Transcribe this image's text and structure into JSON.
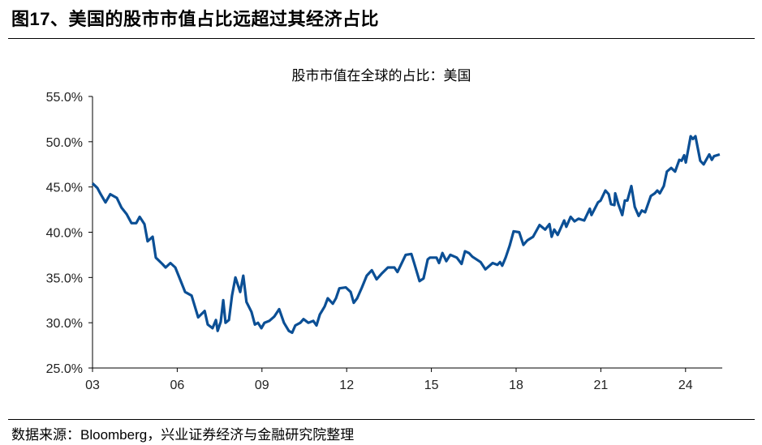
{
  "figure_title": "图17、美国的股市市值占比远超过其经济占比",
  "source": "数据来源：Bloomberg，兴业证券经济与金融研究院整理",
  "colors": {
    "line": "#0b4f95",
    "axis": "#000000"
  },
  "chart_data": {
    "type": "line",
    "title": "股市市值在全球的占比：美国",
    "xlabel": "",
    "ylabel": "",
    "xlim": [
      2003,
      2025.3
    ],
    "ylim": [
      25,
      55
    ],
    "grid": false,
    "legend": "none",
    "x_ticks": [
      2003,
      2006,
      2009,
      2012,
      2015,
      2018,
      2021,
      2024
    ],
    "x_tick_labels": [
      "03",
      "06",
      "09",
      "12",
      "15",
      "18",
      "21",
      "24"
    ],
    "y_ticks": [
      25,
      30,
      35,
      40,
      45,
      50,
      55
    ],
    "y_tick_labels": [
      "25.0%",
      "30.0%",
      "35.0%",
      "40.0%",
      "45.0%",
      "50.0%",
      "55.0%"
    ],
    "series": [
      {
        "name": "美国",
        "points": [
          [
            2003.0,
            45.4
          ],
          [
            2003.17,
            44.9
          ],
          [
            2003.29,
            44.2
          ],
          [
            2003.46,
            43.3
          ],
          [
            2003.63,
            44.2
          ],
          [
            2003.86,
            43.8
          ],
          [
            2004.03,
            42.7
          ],
          [
            2004.21,
            42.0
          ],
          [
            2004.38,
            41.0
          ],
          [
            2004.55,
            41.0
          ],
          [
            2004.67,
            41.7
          ],
          [
            2004.84,
            40.9
          ],
          [
            2004.95,
            39.0
          ],
          [
            2005.13,
            39.5
          ],
          [
            2005.24,
            37.2
          ],
          [
            2005.47,
            36.5
          ],
          [
            2005.59,
            36.1
          ],
          [
            2005.76,
            36.6
          ],
          [
            2005.93,
            36.1
          ],
          [
            2006.1,
            34.8
          ],
          [
            2006.28,
            33.4
          ],
          [
            2006.51,
            33.0
          ],
          [
            2006.74,
            30.6
          ],
          [
            2006.97,
            31.3
          ],
          [
            2007.08,
            29.8
          ],
          [
            2007.25,
            29.4
          ],
          [
            2007.37,
            30.3
          ],
          [
            2007.43,
            29.1
          ],
          [
            2007.54,
            30.1
          ],
          [
            2007.63,
            32.5
          ],
          [
            2007.71,
            30.0
          ],
          [
            2007.83,
            30.3
          ],
          [
            2007.94,
            33.0
          ],
          [
            2008.06,
            35.0
          ],
          [
            2008.23,
            33.4
          ],
          [
            2008.34,
            35.2
          ],
          [
            2008.45,
            32.3
          ],
          [
            2008.63,
            31.2
          ],
          [
            2008.75,
            29.8
          ],
          [
            2008.86,
            30.0
          ],
          [
            2008.98,
            29.4
          ],
          [
            2009.09,
            30.0
          ],
          [
            2009.26,
            30.2
          ],
          [
            2009.44,
            30.7
          ],
          [
            2009.61,
            31.5
          ],
          [
            2009.78,
            30.0
          ],
          [
            2009.95,
            29.1
          ],
          [
            2010.07,
            28.9
          ],
          [
            2010.18,
            29.7
          ],
          [
            2010.36,
            30.0
          ],
          [
            2010.47,
            30.4
          ],
          [
            2010.64,
            30.0
          ],
          [
            2010.82,
            30.2
          ],
          [
            2010.93,
            29.7
          ],
          [
            2011.05,
            30.9
          ],
          [
            2011.22,
            31.8
          ],
          [
            2011.33,
            32.7
          ],
          [
            2011.51,
            32.1
          ],
          [
            2011.62,
            32.7
          ],
          [
            2011.74,
            33.8
          ],
          [
            2011.97,
            33.9
          ],
          [
            2012.14,
            33.4
          ],
          [
            2012.25,
            32.2
          ],
          [
            2012.37,
            32.7
          ],
          [
            2012.54,
            33.9
          ],
          [
            2012.71,
            35.2
          ],
          [
            2012.89,
            35.8
          ],
          [
            2013.06,
            34.8
          ],
          [
            2013.23,
            35.4
          ],
          [
            2013.46,
            36.1
          ],
          [
            2013.69,
            36.1
          ],
          [
            2013.8,
            35.6
          ],
          [
            2014.09,
            37.5
          ],
          [
            2014.29,
            37.6
          ],
          [
            2014.38,
            36.7
          ],
          [
            2014.58,
            34.6
          ],
          [
            2014.72,
            34.9
          ],
          [
            2014.87,
            37.0
          ],
          [
            2014.95,
            37.2
          ],
          [
            2015.18,
            37.2
          ],
          [
            2015.27,
            36.6
          ],
          [
            2015.39,
            37.7
          ],
          [
            2015.53,
            36.8
          ],
          [
            2015.67,
            37.5
          ],
          [
            2015.9,
            37.2
          ],
          [
            2016.07,
            36.5
          ],
          [
            2016.19,
            37.9
          ],
          [
            2016.33,
            37.7
          ],
          [
            2016.45,
            37.3
          ],
          [
            2016.74,
            36.7
          ],
          [
            2016.91,
            35.9
          ],
          [
            2017.17,
            36.6
          ],
          [
            2017.34,
            36.4
          ],
          [
            2017.43,
            36.7
          ],
          [
            2017.51,
            36.3
          ],
          [
            2017.63,
            37.2
          ],
          [
            2017.77,
            38.5
          ],
          [
            2017.91,
            40.1
          ],
          [
            2018.11,
            40.0
          ],
          [
            2018.26,
            38.6
          ],
          [
            2018.4,
            39.1
          ],
          [
            2018.6,
            39.5
          ],
          [
            2018.83,
            40.8
          ],
          [
            2019.03,
            40.3
          ],
          [
            2019.18,
            40.9
          ],
          [
            2019.26,
            39.5
          ],
          [
            2019.35,
            40.3
          ],
          [
            2019.47,
            39.7
          ],
          [
            2019.7,
            41.3
          ],
          [
            2019.78,
            40.6
          ],
          [
            2019.93,
            41.7
          ],
          [
            2020.07,
            41.2
          ],
          [
            2020.21,
            41.5
          ],
          [
            2020.41,
            41.3
          ],
          [
            2020.61,
            42.6
          ],
          [
            2020.67,
            41.9
          ],
          [
            2020.9,
            43.3
          ],
          [
            2020.99,
            43.5
          ],
          [
            2021.16,
            44.6
          ],
          [
            2021.28,
            44.2
          ],
          [
            2021.36,
            43.1
          ],
          [
            2021.48,
            43.0
          ],
          [
            2021.51,
            44.3
          ],
          [
            2021.62,
            43.1
          ],
          [
            2021.76,
            41.9
          ],
          [
            2021.85,
            43.5
          ],
          [
            2021.94,
            43.5
          ],
          [
            2022.08,
            45.1
          ],
          [
            2022.2,
            42.8
          ],
          [
            2022.34,
            41.8
          ],
          [
            2022.45,
            42.4
          ],
          [
            2022.57,
            42.2
          ],
          [
            2022.77,
            44.0
          ],
          [
            2022.91,
            44.3
          ],
          [
            2023.0,
            44.6
          ],
          [
            2023.09,
            44.3
          ],
          [
            2023.23,
            45.1
          ],
          [
            2023.34,
            46.7
          ],
          [
            2023.49,
            47.1
          ],
          [
            2023.63,
            46.7
          ],
          [
            2023.78,
            48.0
          ],
          [
            2023.86,
            47.9
          ],
          [
            2023.95,
            48.5
          ],
          [
            2024.01,
            47.7
          ],
          [
            2024.18,
            50.6
          ],
          [
            2024.26,
            50.3
          ],
          [
            2024.35,
            50.6
          ],
          [
            2024.52,
            47.9
          ],
          [
            2024.64,
            47.5
          ],
          [
            2024.84,
            48.6
          ],
          [
            2024.93,
            48.0
          ],
          [
            2025.01,
            48.4
          ],
          [
            2025.21,
            48.6
          ]
        ]
      }
    ]
  }
}
